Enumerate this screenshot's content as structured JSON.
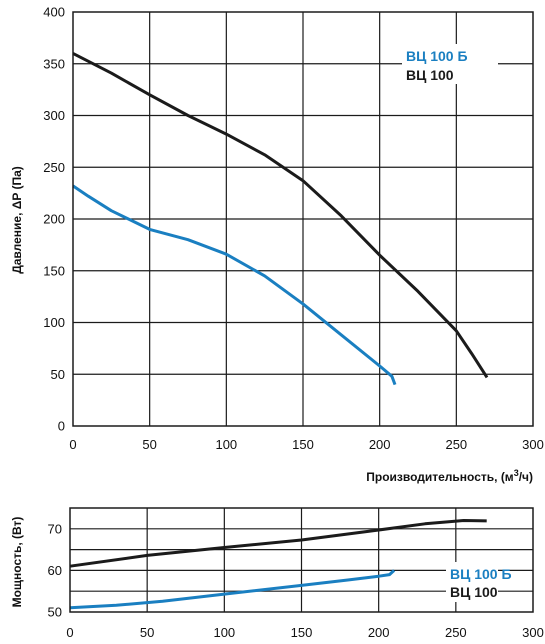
{
  "chart_data": [
    {
      "type": "line",
      "title": "",
      "xlabel_main": "Производительность, (м",
      "xlabel_sup": "3",
      "xlabel_tail": "/ч)",
      "ylabel": "Давление, ΔP (Па)",
      "xlim": [
        0,
        300
      ],
      "ylim": [
        0,
        400
      ],
      "xticks": [
        "0",
        "50",
        "100",
        "150",
        "200",
        "250",
        "300"
      ],
      "yticks": [
        "0",
        "50",
        "100",
        "150",
        "200",
        "250",
        "300",
        "350",
        "400"
      ],
      "grid": true,
      "legend_position": "top-right",
      "series": [
        {
          "name": "ВЦ 100 Б",
          "color": "#1a7fc1",
          "points": [
            [
              0,
              232
            ],
            [
              10,
              222
            ],
            [
              25,
              208
            ],
            [
              50,
              190
            ],
            [
              75,
              180
            ],
            [
              100,
              166
            ],
            [
              125,
              145
            ],
            [
              150,
              118
            ],
            [
              175,
              88
            ],
            [
              200,
              58
            ],
            [
              208,
              48
            ],
            [
              210,
              40
            ]
          ]
        },
        {
          "name": "ВЦ 100",
          "color": "#1b1b1b",
          "points": [
            [
              0,
              360
            ],
            [
              25,
              341
            ],
            [
              50,
              320
            ],
            [
              75,
              300
            ],
            [
              100,
              282
            ],
            [
              125,
              262
            ],
            [
              150,
              237
            ],
            [
              175,
              203
            ],
            [
              200,
              165
            ],
            [
              225,
              130
            ],
            [
              250,
              92
            ],
            [
              260,
              70
            ],
            [
              270,
              47
            ]
          ]
        }
      ]
    },
    {
      "type": "line",
      "title": "",
      "xlabel": "",
      "ylabel": "Мощность, (Вт)",
      "xlim": [
        0,
        300
      ],
      "ylim": [
        50,
        75
      ],
      "xticks": [
        "0",
        "50",
        "100",
        "150",
        "200",
        "250",
        "300"
      ],
      "yticks": [
        "50",
        "60",
        "70"
      ],
      "grid": true,
      "legend_position": "bottom-right",
      "series": [
        {
          "name": "ВЦ 100 Б",
          "color": "#1a7fc1",
          "points": [
            [
              0,
              51
            ],
            [
              30,
              51.6
            ],
            [
              60,
              52.6
            ],
            [
              100,
              54.3
            ],
            [
              150,
              56.4
            ],
            [
              180,
              57.7
            ],
            [
              200,
              58.6
            ],
            [
              207,
              59
            ],
            [
              210,
              60
            ]
          ]
        },
        {
          "name": "ВЦ 100",
          "color": "#1b1b1b",
          "points": [
            [
              0,
              61
            ],
            [
              50,
              63.6
            ],
            [
              100,
              65.5
            ],
            [
              150,
              67.3
            ],
            [
              200,
              69.7
            ],
            [
              230,
              71.2
            ],
            [
              255,
              72
            ],
            [
              270,
              71.9
            ]
          ]
        }
      ]
    }
  ]
}
